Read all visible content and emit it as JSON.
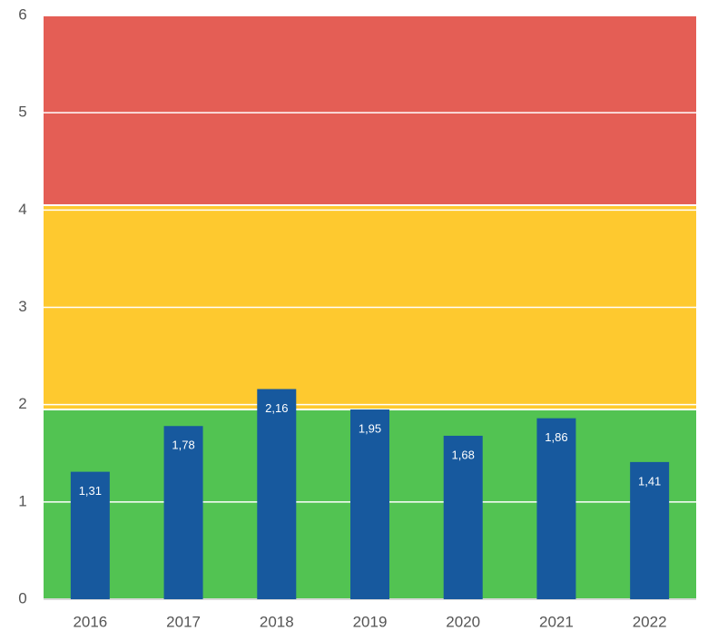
{
  "chart_data": {
    "type": "bar",
    "categories": [
      "2016",
      "2017",
      "2018",
      "2019",
      "2020",
      "2021",
      "2022"
    ],
    "values": [
      1.31,
      1.78,
      2.16,
      1.95,
      1.68,
      1.86,
      1.41
    ],
    "value_labels": [
      "1,31",
      "1,78",
      "2,16",
      "1,95",
      "1,68",
      "1,86",
      "1,41"
    ],
    "color": "#17599e",
    "bands": [
      {
        "from": 0,
        "to": 1.95,
        "color": "#52c352"
      },
      {
        "from": 1.95,
        "to": 4.05,
        "color": "#fec92f"
      },
      {
        "from": 4.05,
        "to": 6,
        "color": "#e45e55"
      }
    ],
    "ylim": [
      0,
      6
    ],
    "yticks": [
      0,
      1,
      2,
      3,
      4,
      5,
      6
    ],
    "grid": true
  }
}
